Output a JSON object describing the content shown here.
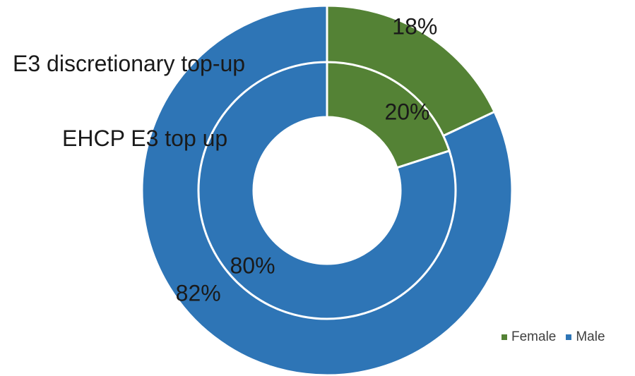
{
  "chart_data": {
    "type": "pie",
    "subtype": "doughnut",
    "categories": [
      "Female",
      "Male"
    ],
    "series": [
      {
        "name": "E3 discretionary top-up",
        "ring": "outer",
        "values": [
          18,
          82
        ],
        "labels": [
          "18%",
          "82%"
        ]
      },
      {
        "name": "EHCP E3 top up",
        "ring": "inner",
        "values": [
          20,
          80
        ],
        "labels": [
          "20%",
          "80%"
        ]
      }
    ],
    "colors": {
      "Female": "#548235",
      "Male": "#2E75B6"
    },
    "legend": {
      "position": "bottom-right",
      "items": [
        "Female",
        "Male"
      ]
    },
    "title": ""
  }
}
